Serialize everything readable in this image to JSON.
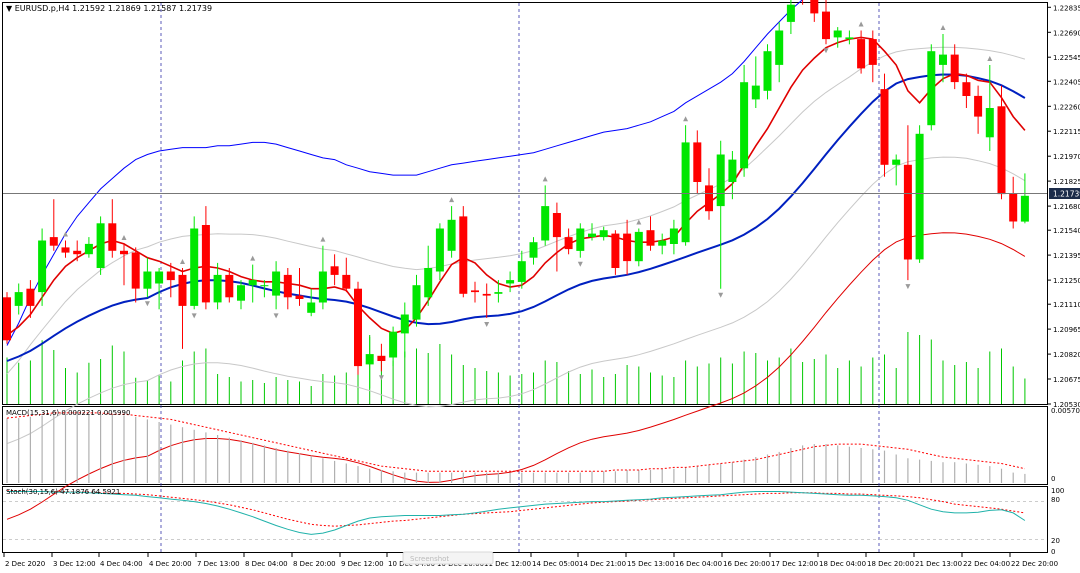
{
  "header": {
    "symbol": "EURUSD.p,H4",
    "ohlc": "1.21592 1.21869 1.21587 1.21739",
    "current_price": "1.21739"
  },
  "indicators": {
    "macd_label": "MACD(15,31,6) 0.000221 0.005990",
    "macd_top": "0.005703",
    "macd_zero": "0",
    "stoch_label": "Stoch(30,15,6) 47.1876 64.5921",
    "stoch_levels": [
      "100",
      "80",
      "20",
      "0"
    ]
  },
  "price_axis": [
    "1.22835",
    "1.22690",
    "1.22545",
    "1.22405",
    "1.22260",
    "1.22115",
    "1.21970",
    "1.21825",
    "1.21680",
    "1.21540",
    "1.21395",
    "1.21250",
    "1.21110",
    "1.20965",
    "1.20820",
    "1.20675",
    "1.20530"
  ],
  "time_axis": [
    "2 Dec 2020",
    "3 Dec 12:00",
    "4 Dec 04:00",
    "4 Dec 20:00",
    "7 Dec 13:00",
    "8 Dec 04:00",
    "8 Dec 20:00",
    "9 Dec 12:00",
    "10 Dec 04:00",
    "10 Dec 20:00",
    "11 Dec 12:00",
    "14 Dec 05:00",
    "14 Dec 21:00",
    "15 Dec 13:00",
    "16 Dec 04:00",
    "16 Dec 20:00",
    "17 Dec 12:00",
    "18 Dec 04:00",
    "18 Dec 20:00",
    "21 Dec 13:00",
    "22 Dec 04:00",
    "22 Dec 20:00"
  ],
  "watermark": "Screenshot",
  "colors": {
    "bull": "#00e600",
    "bear": "#ff0000",
    "bb": "#0000ff",
    "ma_fast": "#e00000",
    "ma_slow": "#0020c0",
    "env": "#c8c8c8",
    "macd_signal": "#ff0000",
    "stoch_main": "#20b2aa",
    "stoch_signal": "#ff0000",
    "volume": "#00c800"
  },
  "chart_data": {
    "type": "candlestick",
    "symbol": "EURUSD.p",
    "timeframe": "H4",
    "ylim": [
      1.2053,
      1.2286
    ],
    "candles": [
      [
        1.2115,
        1.2118,
        1.2088,
        1.209
      ],
      [
        1.211,
        1.2123,
        1.2105,
        1.2118
      ],
      [
        1.212,
        1.2125,
        1.2103,
        1.211
      ],
      [
        1.2118,
        1.2155,
        1.211,
        1.2148
      ],
      [
        1.215,
        1.2172,
        1.2142,
        1.2145
      ],
      [
        1.2144,
        1.2148,
        1.2138,
        1.2141
      ],
      [
        1.2142,
        1.2148,
        1.2136,
        1.214
      ],
      [
        1.214,
        1.215,
        1.2138,
        1.2146
      ],
      [
        1.2132,
        1.2162,
        1.2128,
        1.2158
      ],
      [
        1.2158,
        1.2172,
        1.2138,
        1.2142
      ],
      [
        1.2142,
        1.2146,
        1.2122,
        1.214
      ],
      [
        1.2141,
        1.2144,
        1.2112,
        1.212
      ],
      [
        1.212,
        1.2138,
        1.2115,
        1.213
      ],
      [
        1.2123,
        1.2132,
        1.2108,
        1.213
      ],
      [
        1.213,
        1.2135,
        1.2115,
        1.2125
      ],
      [
        1.2128,
        1.2132,
        1.2085,
        1.211
      ],
      [
        1.211,
        1.2162,
        1.2108,
        1.2155
      ],
      [
        1.2157,
        1.2168,
        1.2108,
        1.2112
      ],
      [
        1.2112,
        1.2135,
        1.2108,
        1.2128
      ],
      [
        1.2128,
        1.2132,
        1.2112,
        1.2115
      ],
      [
        1.2113,
        1.2125,
        1.2108,
        1.2122
      ],
      [
        1.2122,
        1.2134,
        1.2112,
        1.2125
      ],
      [
        1.2122,
        1.2125,
        1.2115,
        1.2122
      ],
      [
        1.2116,
        1.2136,
        1.2108,
        1.213
      ],
      [
        1.2128,
        1.2132,
        1.2108,
        1.2115
      ],
      [
        1.2116,
        1.2132,
        1.211,
        1.2114
      ],
      [
        1.2106,
        1.212,
        1.2104,
        1.2112
      ],
      [
        1.2112,
        1.2145,
        1.2108,
        1.213
      ],
      [
        1.2133,
        1.214,
        1.2122,
        1.2128
      ],
      [
        1.2128,
        1.2138,
        1.2118,
        1.212
      ],
      [
        1.212,
        1.2124,
        1.207,
        1.2075
      ],
      [
        1.2076,
        1.2092,
        1.2062,
        1.2082
      ],
      [
        1.2081,
        1.2088,
        1.2072,
        1.2078
      ],
      [
        1.208,
        1.2098,
        1.2075,
        1.2095
      ],
      [
        1.2094,
        1.2112,
        1.208,
        1.2105
      ],
      [
        1.2102,
        1.2128,
        1.2098,
        1.2122
      ],
      [
        1.2115,
        1.2145,
        1.211,
        1.2132
      ],
      [
        1.213,
        1.2158,
        1.2125,
        1.2155
      ],
      [
        1.2142,
        1.2168,
        1.2138,
        1.216
      ],
      [
        1.2162,
        1.2168,
        1.2115,
        1.2117
      ],
      [
        1.2119,
        1.2124,
        1.2112,
        1.2118
      ],
      [
        1.2117,
        1.2123,
        1.2103,
        1.2116
      ],
      [
        1.2117,
        1.2125,
        1.2112,
        1.2118
      ],
      [
        1.2123,
        1.213,
        1.2118,
        1.2125
      ],
      [
        1.2124,
        1.2142,
        1.212,
        1.2136
      ],
      [
        1.2138,
        1.215,
        1.2134,
        1.2147
      ],
      [
        1.2148,
        1.218,
        1.2145,
        1.2168
      ],
      [
        1.2164,
        1.217,
        1.213,
        1.215
      ],
      [
        1.215,
        1.2155,
        1.214,
        1.2143
      ],
      [
        1.2142,
        1.2158,
        1.2138,
        1.2155
      ],
      [
        1.215,
        1.2158,
        1.2148,
        1.2152
      ],
      [
        1.215,
        1.2156,
        1.2148,
        1.2154
      ],
      [
        1.2152,
        1.2154,
        1.2128,
        1.2132
      ],
      [
        1.2152,
        1.216,
        1.2128,
        1.2136
      ],
      [
        1.2136,
        1.2155,
        1.2133,
        1.2153
      ],
      [
        1.2154,
        1.2162,
        1.2142,
        1.2145
      ],
      [
        1.2145,
        1.2152,
        1.214,
        1.2148
      ],
      [
        1.2146,
        1.216,
        1.214,
        1.2155
      ],
      [
        1.2147,
        1.2215,
        1.2145,
        1.2205
      ],
      [
        1.2205,
        1.2212,
        1.2175,
        1.2182
      ],
      [
        1.218,
        1.219,
        1.216,
        1.2165
      ],
      [
        1.2168,
        1.2206,
        1.212,
        1.2198
      ],
      [
        1.2182,
        1.22,
        1.2172,
        1.2195
      ],
      [
        1.219,
        1.225,
        1.2185,
        1.224
      ],
      [
        1.223,
        1.2255,
        1.2225,
        1.2238
      ],
      [
        1.2235,
        1.2262,
        1.223,
        1.2258
      ],
      [
        1.225,
        1.2275,
        1.224,
        1.227
      ],
      [
        1.2275,
        1.229,
        1.2268,
        1.2285
      ],
      [
        1.2295,
        1.2296,
        1.2285,
        1.2288
      ],
      [
        1.2292,
        1.2296,
        1.2275,
        1.228
      ],
      [
        1.2281,
        1.2288,
        1.2262,
        1.2265
      ],
      [
        1.2266,
        1.2272,
        1.226,
        1.227
      ],
      [
        1.2265,
        1.227,
        1.2262,
        1.2266
      ],
      [
        1.2265,
        1.227,
        1.2245,
        1.2248
      ],
      [
        1.2265,
        1.227,
        1.224,
        1.225
      ],
      [
        1.2236,
        1.2245,
        1.2185,
        1.2192
      ],
      [
        1.2192,
        1.2198,
        1.218,
        1.2195
      ],
      [
        1.2192,
        1.2215,
        1.2125,
        1.2137
      ],
      [
        1.2137,
        1.2215,
        1.2135,
        1.221
      ],
      [
        1.2215,
        1.2262,
        1.2212,
        1.2258
      ],
      [
        1.225,
        1.2268,
        1.224,
        1.2256
      ],
      [
        1.2256,
        1.2262,
        1.2236,
        1.224
      ],
      [
        1.224,
        1.2245,
        1.2225,
        1.2232
      ],
      [
        1.2232,
        1.2238,
        1.221,
        1.222
      ],
      [
        1.2208,
        1.225,
        1.22,
        1.2225
      ],
      [
        1.2226,
        1.2238,
        1.2172,
        1.2175
      ],
      [
        1.2175,
        1.2185,
        1.2155,
        1.2159
      ],
      [
        1.2159,
        1.2187,
        1.2158,
        1.2174
      ]
    ],
    "volume": [
      0.62,
      0.55,
      0.58,
      0.85,
      0.72,
      0.48,
      0.42,
      0.55,
      0.6,
      0.78,
      0.7,
      0.35,
      0.32,
      0.38,
      0.3,
      0.58,
      0.7,
      0.74,
      0.4,
      0.36,
      0.3,
      0.32,
      0.28,
      0.36,
      0.32,
      0.3,
      0.24,
      0.4,
      0.38,
      0.42,
      0.96,
      0.92,
      0.62,
      0.58,
      0.7,
      0.74,
      0.68,
      0.8,
      0.66,
      0.52,
      0.48,
      0.44,
      0.42,
      0.38,
      0.4,
      0.42,
      0.58,
      0.56,
      0.44,
      0.4,
      0.46,
      0.36,
      0.4,
      0.52,
      0.5,
      0.42,
      0.38,
      0.36,
      0.58,
      0.5,
      0.54,
      0.62,
      0.54,
      0.7,
      0.68,
      0.58,
      0.62,
      0.74,
      0.56,
      0.6,
      0.66,
      0.48,
      0.58,
      0.5,
      0.62,
      0.66,
      0.48,
      0.96,
      0.92,
      0.86,
      0.58,
      0.52,
      0.56,
      0.48,
      0.7,
      0.74,
      0.5,
      0.34
    ],
    "macd_range": [
      0,
      0.005703
    ],
    "macd_histogram": [
      0.005,
      0.005,
      0.0051,
      0.0052,
      0.0053,
      0.0053,
      0.0053,
      0.0053,
      0.0053,
      0.0053,
      0.0052,
      0.0051,
      0.0049,
      0.0047,
      0.0045,
      0.0043,
      0.0041,
      0.0039,
      0.0037,
      0.0035,
      0.0033,
      0.0031,
      0.0029,
      0.0027,
      0.0025,
      0.0023,
      0.0021,
      0.0019,
      0.0017,
      0.0015,
      0.0013,
      0.0011,
      0.001,
      0.0009,
      0.0008,
      0.0008,
      0.0008,
      0.0008,
      0.0008,
      0.0008,
      0.0008,
      0.0008,
      0.0008,
      0.0008,
      0.0008,
      0.0008,
      0.0008,
      0.0008,
      0.0008,
      0.0008,
      0.0009,
      0.0009,
      0.0009,
      0.001,
      0.001,
      0.001,
      0.0011,
      0.0011,
      0.0012,
      0.0013,
      0.0014,
      0.0015,
      0.0016,
      0.0018,
      0.002,
      0.0022,
      0.0024,
      0.0027,
      0.0029,
      0.003,
      0.003,
      0.0029,
      0.0028,
      0.0027,
      0.0026,
      0.0025,
      0.0022,
      0.0019,
      0.0018,
      0.0017,
      0.0016,
      0.0016,
      0.0015,
      0.0014,
      0.0013,
      0.0011,
      0.0008,
      0.0007
    ],
    "macd_signal": [
      0.005,
      0.0051,
      0.0052,
      0.0053,
      0.0054,
      0.0054,
      0.0054,
      0.0054,
      0.0054,
      0.0053,
      0.0053,
      0.0052,
      0.0051,
      0.005,
      0.0049,
      0.0047,
      0.0045,
      0.0043,
      0.0041,
      0.0039,
      0.0037,
      0.0035,
      0.0033,
      0.0031,
      0.0029,
      0.0027,
      0.0025,
      0.0023,
      0.0021,
      0.0019,
      0.0017,
      0.0015,
      0.0013,
      0.0012,
      0.0011,
      0.001,
      0.0009,
      0.0009,
      0.0009,
      0.0009,
      0.0009,
      0.0009,
      0.0009,
      0.0009,
      0.0009,
      0.0009,
      0.0009,
      0.0009,
      0.0009,
      0.0009,
      0.0009,
      0.0009,
      0.001,
      0.001,
      0.001,
      0.0011,
      0.0011,
      0.0012,
      0.0012,
      0.0013,
      0.0014,
      0.0015,
      0.0016,
      0.0017,
      0.0018,
      0.002,
      0.0022,
      0.0024,
      0.0026,
      0.0028,
      0.0029,
      0.003,
      0.003,
      0.003,
      0.0029,
      0.0028,
      0.0027,
      0.0026,
      0.0024,
      0.0022,
      0.002,
      0.0019,
      0.0018,
      0.0017,
      0.0016,
      0.0015,
      0.0013,
      0.0011
    ],
    "stoch_main": [
      96,
      96,
      96,
      96,
      95,
      95,
      95,
      94,
      93,
      92,
      91,
      90,
      88,
      86,
      84,
      82,
      80,
      77,
      73,
      68,
      62,
      56,
      49,
      42,
      36,
      31,
      28,
      30,
      35,
      42,
      49,
      54,
      56,
      57,
      58,
      58,
      58,
      58,
      59,
      60,
      62,
      65,
      68,
      70,
      72,
      74,
      76,
      77,
      78,
      79,
      80,
      80,
      81,
      82,
      83,
      84,
      86,
      87,
      88,
      89,
      90,
      91,
      93,
      95,
      96,
      96,
      96,
      95,
      94,
      93,
      92,
      91,
      90,
      90,
      89,
      88,
      86,
      82,
      75,
      68,
      64,
      62,
      62,
      63,
      66,
      67,
      62,
      50
    ],
    "stoch_signal": [
      97,
      97,
      96,
      96,
      96,
      96,
      95,
      95,
      94,
      93,
      93,
      92,
      91,
      89,
      87,
      85,
      83,
      81,
      78,
      75,
      71,
      67,
      62,
      57,
      52,
      48,
      44,
      42,
      41,
      42,
      43,
      45,
      47,
      49,
      50,
      52,
      54,
      56,
      58,
      60,
      61,
      62,
      63,
      64,
      66,
      68,
      70,
      72,
      74,
      76,
      78,
      79,
      80,
      81,
      82,
      83,
      84,
      85,
      86,
      87,
      88,
      89,
      90,
      91,
      92,
      93,
      93,
      94,
      94,
      94,
      93,
      93,
      92,
      92,
      91,
      90,
      89,
      88,
      86,
      83,
      80,
      76,
      74,
      72,
      70,
      68,
      65,
      62
    ],
    "stoch_range": [
      0,
      100
    ],
    "stoch_levels": [
      20,
      80
    ],
    "bb_upper": [
      1.2087,
      1.21,
      1.2115,
      1.2128,
      1.214,
      1.2152,
      1.2162,
      1.217,
      1.2178,
      1.2184,
      1.219,
      1.2195,
      1.2198,
      1.22,
      1.2201,
      1.2202,
      1.2202,
      1.2202,
      1.2203,
      1.2203,
      1.2204,
      1.2205,
      1.2205,
      1.2204,
      1.2202,
      1.22,
      1.2198,
      1.2196,
      1.2195,
      1.2192,
      1.219,
      1.2188,
      1.2187,
      1.2186,
      1.2186,
      1.2186,
      1.2188,
      1.219,
      1.2192,
      1.2193,
      1.2194,
      1.2195,
      1.2196,
      1.2197,
      1.2198,
      1.2199,
      1.2201,
      1.2203,
      1.2205,
      1.2207,
      1.2209,
      1.2211,
      1.2212,
      1.2213,
      1.2215,
      1.2217,
      1.222,
      1.2223,
      1.2228,
      1.2232,
      1.2236,
      1.224,
      1.2245,
      1.2252,
      1.226,
      1.2268,
      1.2275,
      1.2282,
      1.2288,
      1.2292,
      1.2294,
      1.2295,
      1.2296,
      1.2298,
      1.2299,
      1.23,
      1.23,
      1.23,
      1.23,
      1.23,
      1.23,
      1.23,
      1.23,
      1.23,
      1.23,
      1.23,
      1.23,
      1.23
    ],
    "ma_fast": [
      1.2093,
      1.2098,
      1.2105,
      1.2115,
      1.2125,
      1.2133,
      1.2138,
      1.2142,
      1.2146,
      1.2148,
      1.2146,
      1.2142,
      1.2138,
      1.2136,
      1.2133,
      1.213,
      1.2132,
      1.2133,
      1.2132,
      1.213,
      1.2127,
      1.2125,
      1.2124,
      1.2124,
      1.2123,
      1.2122,
      1.212,
      1.212,
      1.2121,
      1.2119,
      1.211,
      1.2103,
      1.2097,
      1.2094,
      1.2096,
      1.2103,
      1.2113,
      1.2124,
      1.2134,
      1.2138,
      1.2135,
      1.2128,
      1.2123,
      1.2121,
      1.2122,
      1.2127,
      1.2135,
      1.2141,
      1.2146,
      1.2149,
      1.215,
      1.2151,
      1.215,
      1.2148,
      1.2147,
      1.2147,
      1.2148,
      1.215,
      1.2158,
      1.2165,
      1.217,
      1.2175,
      1.2181,
      1.2192,
      1.2203,
      1.2213,
      1.2225,
      1.2237,
      1.2247,
      1.2254,
      1.226,
      1.2263,
      1.2265,
      1.2266,
      1.2265,
      1.2258,
      1.225,
      1.2235,
      1.2228,
      1.2236,
      1.2242,
      1.2245,
      1.2244,
      1.2241,
      1.224,
      1.2231,
      1.222,
      1.2212
    ]
  }
}
